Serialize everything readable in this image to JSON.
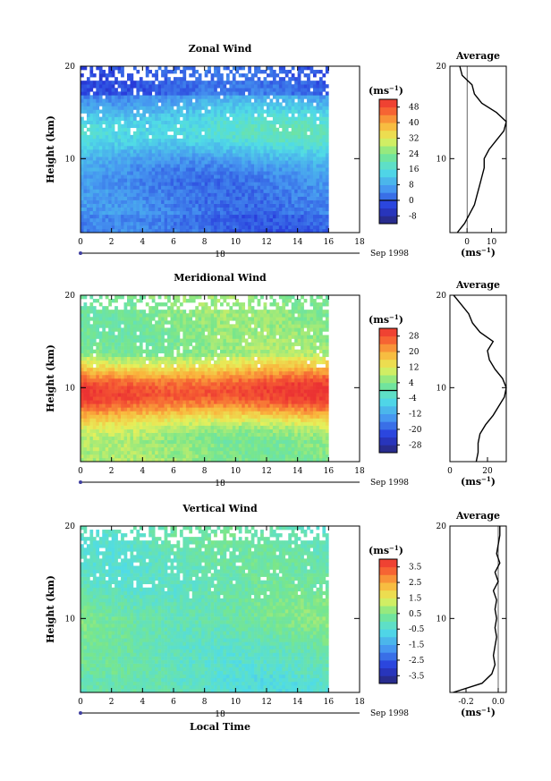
{
  "chart_data": [
    {
      "type": "heatmap",
      "title": "Zonal Wind",
      "ylabel": "Height (km)",
      "xlabel": "",
      "xlim": [
        0,
        18
      ],
      "ylim": [
        2,
        20
      ],
      "xticks": [
        "0",
        "2",
        "4",
        "6",
        "8",
        "10",
        "12",
        "14",
        "16",
        "18"
      ],
      "yticks": [
        "10",
        "20"
      ],
      "date_day": "18",
      "date_label": "Sep 1998",
      "data_end_hour": 16,
      "colorbar": {
        "unit": "(ms",
        "unit_exp": "−1",
        "levels": [
          -8,
          0,
          8,
          16,
          24,
          32,
          40,
          48
        ],
        "zero_line": 0,
        "vmin": -12,
        "vmax": 52
      },
      "field": {
        "base": 4,
        "peak_height": 13,
        "peak_value": 17,
        "upper_value": -4,
        "low_value": -2
      },
      "profile": {
        "title": "Average",
        "xlabel": "(ms",
        "xlabel_exp": "−1",
        "xticks": [
          "0",
          "10"
        ],
        "yticks": [
          "10",
          "20"
        ],
        "xlim": [
          -7,
          16
        ],
        "zero_line": 0,
        "heights": [
          2,
          3,
          4,
          5,
          6,
          7,
          8,
          9,
          10,
          11,
          12,
          13,
          14,
          15,
          16,
          17,
          18,
          19,
          20
        ],
        "values": [
          -4,
          -1,
          1,
          3,
          4,
          5,
          6,
          7,
          7,
          9,
          12,
          15,
          16,
          12,
          6,
          3,
          2,
          -2,
          -3
        ]
      }
    },
    {
      "type": "heatmap",
      "title": "Meridional Wind",
      "ylabel": "Height (km)",
      "xlabel": "",
      "xlim": [
        0,
        18
      ],
      "ylim": [
        2,
        20
      ],
      "xticks": [
        "0",
        "2",
        "4",
        "6",
        "8",
        "10",
        "12",
        "14",
        "16",
        "18"
      ],
      "yticks": [
        "10",
        "20"
      ],
      "date_day": "18",
      "date_label": "Sep 1998",
      "data_end_hour": 16,
      "colorbar": {
        "unit": "(ms",
        "unit_exp": "−1",
        "levels": [
          -28,
          -20,
          -12,
          -4,
          4,
          12,
          20,
          28
        ],
        "zero_line": 0,
        "vmin": -32,
        "vmax": 32
      },
      "field": {
        "base": 4,
        "peak_height": 9.5,
        "peak_value": 30,
        "upper_value": 4,
        "low_value": 8
      },
      "profile": {
        "title": "Average",
        "xlabel": "(ms",
        "xlabel_exp": "−1",
        "xticks": [
          "0",
          "20"
        ],
        "yticks": [
          "10",
          "20"
        ],
        "xlim": [
          0,
          30
        ],
        "zero_line": 0,
        "heights": [
          2,
          3,
          4,
          5,
          6,
          7,
          8,
          9,
          10,
          11,
          12,
          13,
          14,
          15,
          16,
          17,
          18,
          19,
          20
        ],
        "values": [
          14,
          15,
          15,
          16,
          19,
          23,
          26,
          29,
          30,
          28,
          24,
          21,
          20,
          23,
          16,
          12,
          10,
          6,
          2
        ]
      }
    },
    {
      "type": "heatmap",
      "title": "Vertical Wind",
      "ylabel": "Height (km)",
      "xlabel": "Local Time",
      "xlim": [
        0,
        18
      ],
      "ylim": [
        2,
        20
      ],
      "xticks": [
        "0",
        "2",
        "4",
        "6",
        "8",
        "10",
        "12",
        "14",
        "16",
        "18"
      ],
      "yticks": [
        "10",
        "20"
      ],
      "date_day": "18",
      "date_label": "Sep 1998",
      "data_end_hour": 16,
      "colorbar": {
        "unit": "(ms",
        "unit_exp": "−1",
        "levels": [
          -3.5,
          -2.5,
          -1.5,
          -0.5,
          0.5,
          1.5,
          2.5,
          3.5
        ],
        "zero_line": null,
        "vmin": -4,
        "vmax": 4
      },
      "field": {
        "base": -0.1,
        "peak_height": 10,
        "peak_value": 0.3,
        "upper_value": 0.0,
        "low_value": -0.5
      },
      "profile": {
        "title": "Average",
        "xlabel": "(ms",
        "xlabel_exp": "−1",
        "xticks": [
          "-0.2",
          "0.0"
        ],
        "yticks": [
          "10",
          "20"
        ],
        "xlim": [
          -0.3,
          0.05
        ],
        "zero_line": 0,
        "heights": [
          2,
          3,
          4,
          5,
          6,
          7,
          8,
          9,
          10,
          11,
          12,
          13,
          14,
          15,
          16,
          17,
          18,
          19,
          20
        ],
        "values": [
          -0.28,
          -0.1,
          -0.04,
          -0.02,
          -0.03,
          -0.02,
          -0.01,
          -0.02,
          -0.01,
          -0.02,
          -0.01,
          -0.03,
          0.0,
          -0.02,
          0.01,
          -0.01,
          0.0,
          0.01,
          0.01
        ]
      }
    }
  ]
}
